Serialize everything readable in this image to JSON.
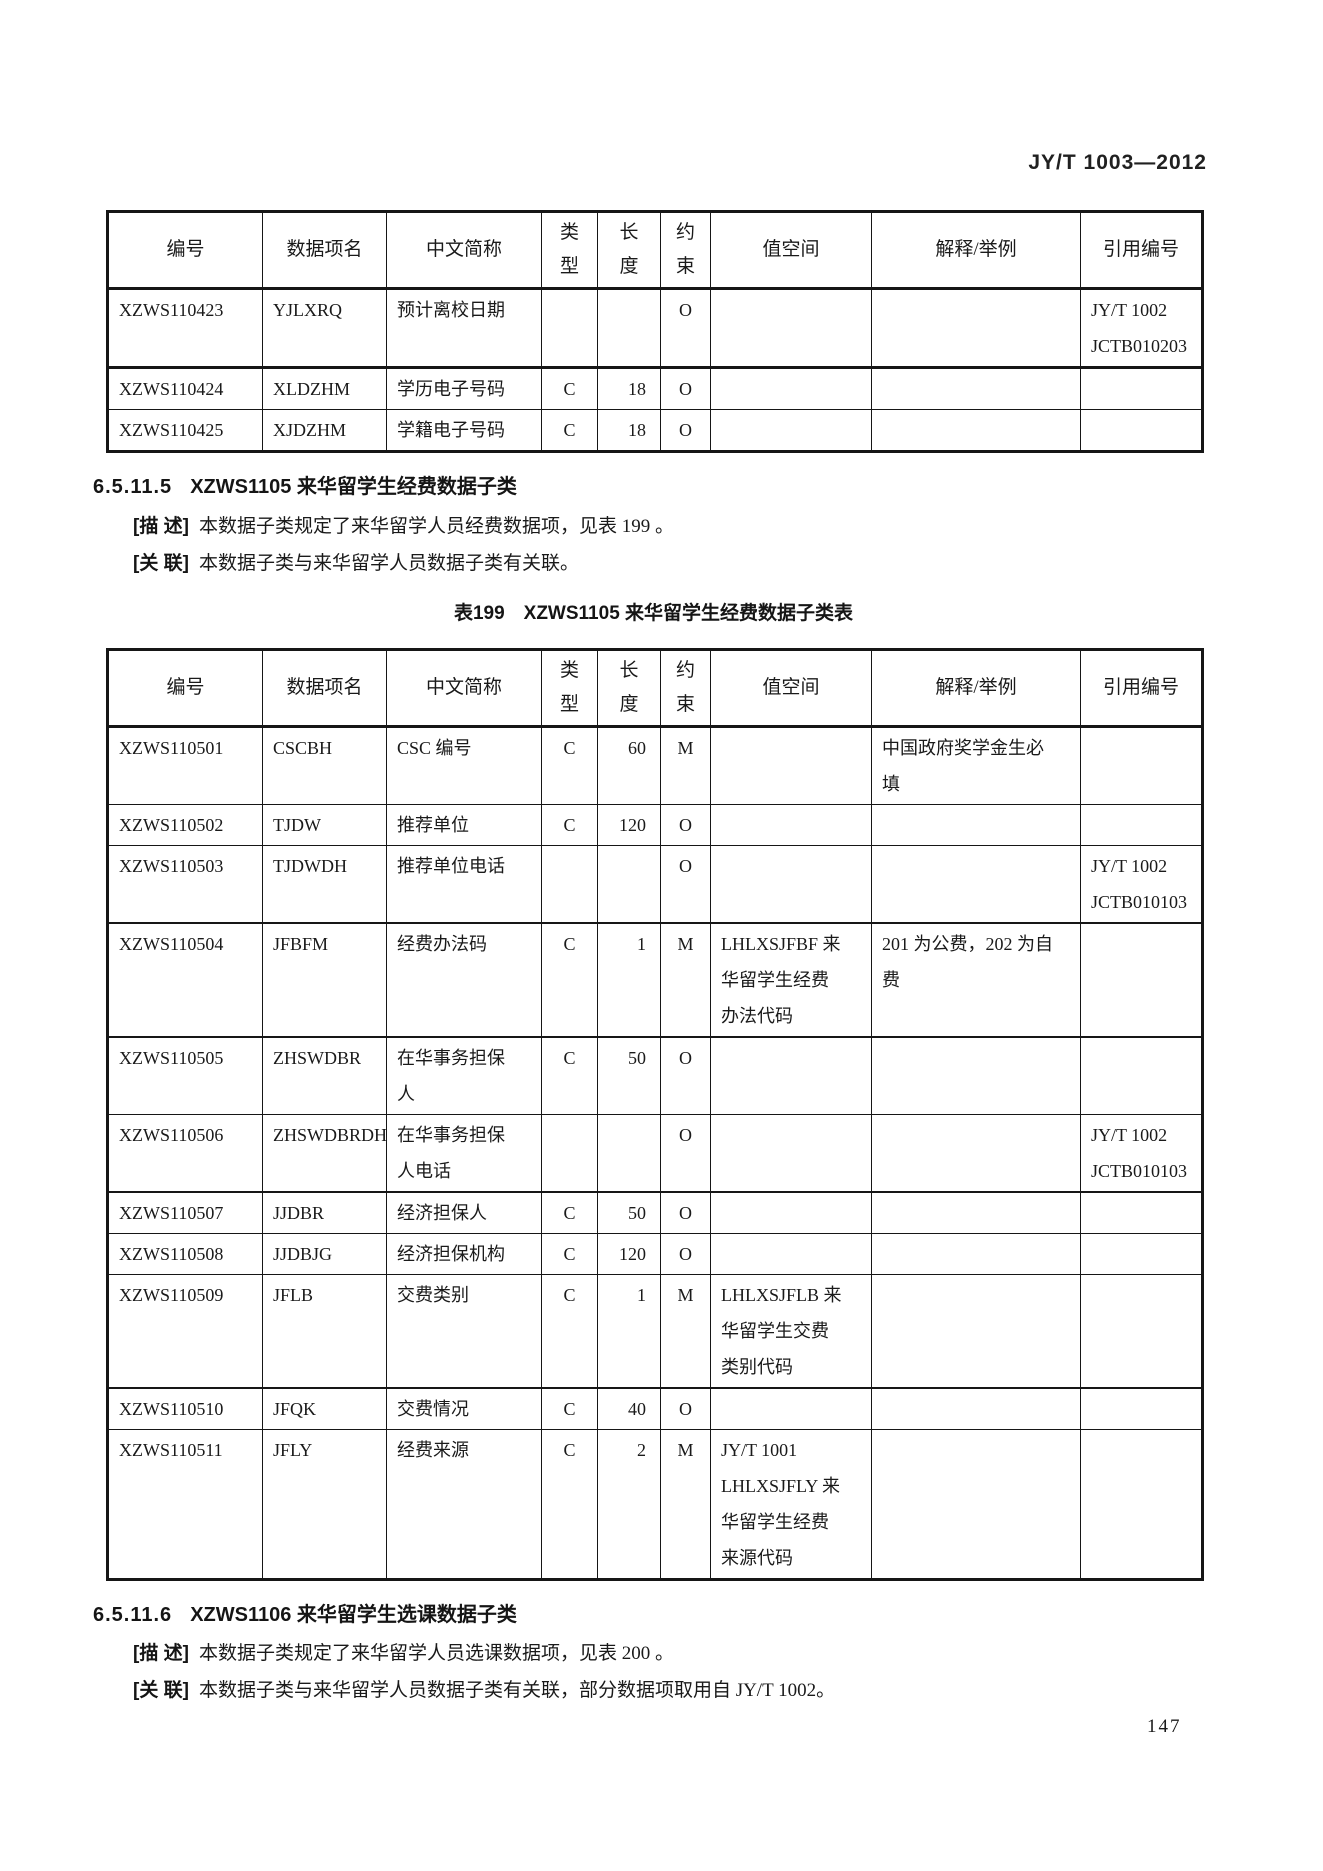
{
  "header": {
    "doc_code": "JY/T 1003—2012"
  },
  "page_number": "147",
  "columns": [
    "编号",
    "数据项名",
    "中文简称",
    "类型",
    "长度",
    "约束",
    "值空间",
    "解释/举例",
    "引用编号"
  ],
  "table_continuation": {
    "rows": [
      [
        "XZWS110423",
        "YJLXRQ",
        "预计离校日期",
        "",
        "",
        "O",
        "",
        "",
        "JY/T 1002\nJCTB010203"
      ],
      [
        "XZWS110424",
        "XLDZHM",
        "学历电子号码",
        "C",
        "18",
        "O",
        "",
        "",
        ""
      ],
      [
        "XZWS110425",
        "XJDZHM",
        "学籍电子号码",
        "C",
        "18",
        "O",
        "",
        "",
        ""
      ]
    ]
  },
  "section_5": {
    "number": "6.5.11.5",
    "title": "XZWS1105 来华留学生经费数据子类",
    "desc_label": "[描 述]",
    "desc_text": "本数据子类规定了来华留学人员经费数据项，见表 199 。",
    "rel_label": "[关 联]",
    "rel_text": "本数据子类与来华留学人员数据子类有关联。"
  },
  "table199": {
    "caption": "表199　XZWS1105 来华留学生经费数据子类表",
    "rows": [
      [
        "XZWS110501",
        "CSCBH",
        "CSC 编号",
        "C",
        "60",
        "M",
        "",
        "中国政府奖学金生必\n填",
        ""
      ],
      [
        "XZWS110502",
        "TJDW",
        "推荐单位",
        "C",
        "120",
        "O",
        "",
        "",
        ""
      ],
      [
        "XZWS110503",
        "TJDWDH",
        "推荐单位电话",
        "",
        "",
        "O",
        "",
        "",
        "JY/T 1002\nJCTB010103"
      ],
      [
        "XZWS110504",
        "JFBFM",
        "经费办法码",
        "C",
        "1",
        "M",
        "LHLXSJFBF 来\n华留学生经费\n办法代码",
        "201 为公费，202 为自\n费",
        ""
      ],
      [
        "XZWS110505",
        "ZHSWDBR",
        "在华事务担保\n人",
        "C",
        "50",
        "O",
        "",
        "",
        ""
      ],
      [
        "XZWS110506",
        "ZHSWDBRDH",
        "在华事务担保\n人电话",
        "",
        "",
        "O",
        "",
        "",
        "JY/T 1002\nJCTB010103"
      ],
      [
        "XZWS110507",
        "JJDBR",
        "经济担保人",
        "C",
        "50",
        "O",
        "",
        "",
        ""
      ],
      [
        "XZWS110508",
        "JJDBJG",
        "经济担保机构",
        "C",
        "120",
        "O",
        "",
        "",
        ""
      ],
      [
        "XZWS110509",
        "JFLB",
        "交费类别",
        "C",
        "1",
        "M",
        "LHLXSJFLB 来\n华留学生交费\n类别代码",
        "",
        ""
      ],
      [
        "XZWS110510",
        "JFQK",
        "交费情况",
        "C",
        "40",
        "O",
        "",
        "",
        ""
      ],
      [
        "XZWS110511",
        "JFLY",
        "经费来源",
        "C",
        "2",
        "M",
        "JY/T 1001\nLHLXSJFLY 来\n华留学生经费\n来源代码",
        "",
        ""
      ]
    ]
  },
  "section_6": {
    "number": "6.5.11.6",
    "title": "XZWS1106 来华留学生选课数据子类",
    "desc_label": "[描 述]",
    "desc_text": "本数据子类规定了来华留学人员选课数据项，见表 200 。",
    "rel_label": "[关 联]",
    "rel_text": "本数据子类与来华留学人员数据子类有关联，部分数据项取用自 JY/T 1002。"
  }
}
